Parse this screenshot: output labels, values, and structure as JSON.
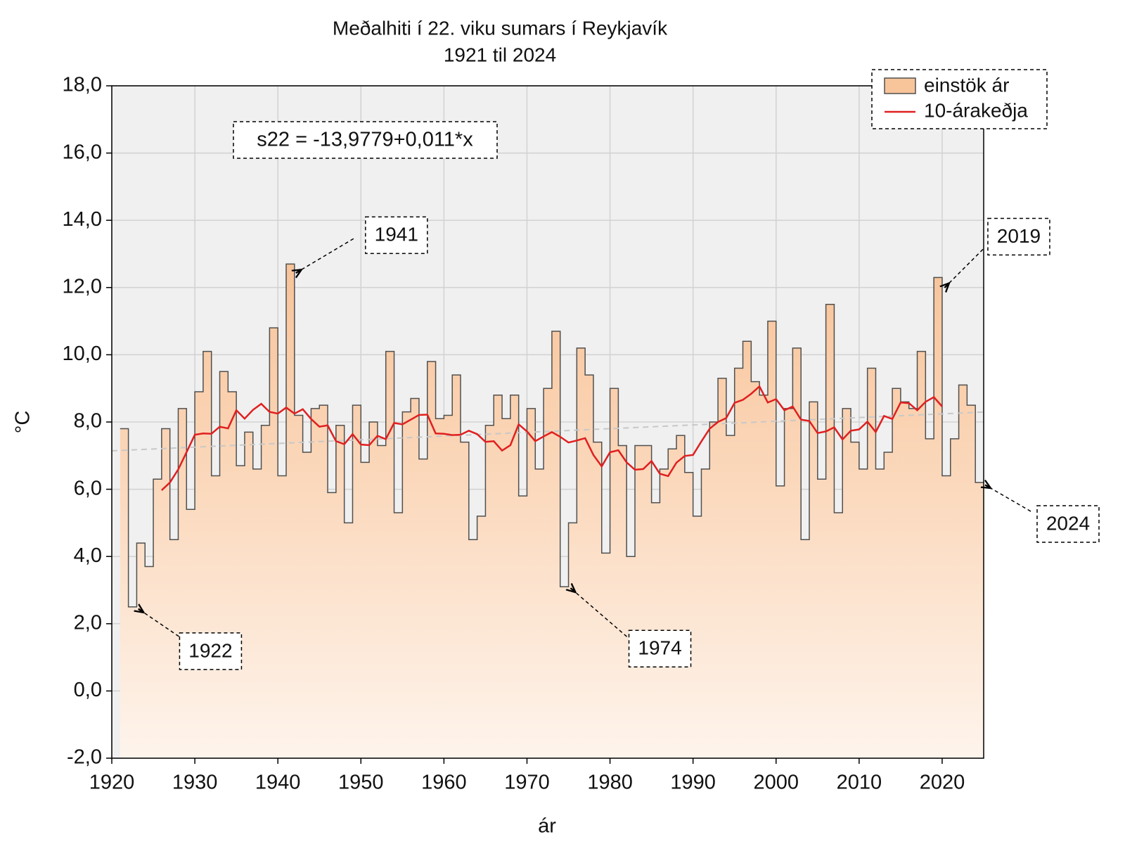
{
  "chart_data": {
    "type": "step",
    "title": "Meðalhiti í 22. viku sumars í Reykjavík",
    "subtitle": "1921 til 2024",
    "x_label": "ár",
    "y_label": "°C",
    "x": [
      1921,
      1922,
      1923,
      1924,
      1925,
      1926,
      1927,
      1928,
      1929,
      1930,
      1931,
      1932,
      1933,
      1934,
      1935,
      1936,
      1937,
      1938,
      1939,
      1940,
      1941,
      1942,
      1943,
      1944,
      1945,
      1946,
      1947,
      1948,
      1949,
      1950,
      1951,
      1952,
      1953,
      1954,
      1955,
      1956,
      1957,
      1958,
      1959,
      1960,
      1961,
      1962,
      1963,
      1964,
      1965,
      1966,
      1967,
      1968,
      1969,
      1970,
      1971,
      1972,
      1973,
      1974,
      1975,
      1976,
      1977,
      1978,
      1979,
      1980,
      1981,
      1982,
      1983,
      1984,
      1985,
      1986,
      1987,
      1988,
      1989,
      1990,
      1991,
      1992,
      1993,
      1994,
      1995,
      1996,
      1997,
      1998,
      1999,
      2000,
      2001,
      2002,
      2003,
      2004,
      2005,
      2006,
      2007,
      2008,
      2009,
      2010,
      2011,
      2012,
      2013,
      2014,
      2015,
      2016,
      2017,
      2018,
      2019,
      2020,
      2021,
      2022,
      2023,
      2024
    ],
    "series": [
      {
        "name": "einstök ár",
        "color": "#f8c49a",
        "edge_color": "#505050",
        "values": [
          7.8,
          2.5,
          4.4,
          3.7,
          6.3,
          7.8,
          4.5,
          8.4,
          5.4,
          8.9,
          10.1,
          6.4,
          9.5,
          8.9,
          6.7,
          7.7,
          6.6,
          7.9,
          10.8,
          6.4,
          12.7,
          8.2,
          7.1,
          8.4,
          8.5,
          5.9,
          7.9,
          5.0,
          8.5,
          6.8,
          8.0,
          7.3,
          10.1,
          5.3,
          8.3,
          8.7,
          6.9,
          9.8,
          8.1,
          8.2,
          9.4,
          7.4,
          4.5,
          5.2,
          7.9,
          8.8,
          8.1,
          8.8,
          5.8,
          8.4,
          6.6,
          9.0,
          10.7,
          3.1,
          5.0,
          10.2,
          9.4,
          7.4,
          4.1,
          9.0,
          7.3,
          4.0,
          7.3,
          7.3,
          5.6,
          6.6,
          7.2,
          7.6,
          6.5,
          5.2,
          6.6,
          8.0,
          9.3,
          7.6,
          9.6,
          10.4,
          9.2,
          8.8,
          11.0,
          6.1,
          8.4,
          10.2,
          4.5,
          8.6,
          6.3,
          11.5,
          5.3,
          8.4,
          7.4,
          6.6,
          9.6,
          6.6,
          7.1,
          9.0,
          8.6,
          8.4,
          10.1,
          7.5,
          12.3,
          6.4,
          7.5,
          9.1,
          8.5,
          6.2
        ]
      },
      {
        "name": "10-árakeðja",
        "color": "#e02020",
        "values": [
          null,
          null,
          null,
          null,
          null,
          5.97,
          6.2,
          6.59,
          7.1,
          7.62,
          7.66,
          7.65,
          7.86,
          7.81,
          8.35,
          8.1,
          8.36,
          8.54,
          8.3,
          8.25,
          8.43,
          8.25,
          8.38,
          8.09,
          7.86,
          7.9,
          7.43,
          7.34,
          7.64,
          7.33,
          7.31,
          7.59,
          7.49,
          7.97,
          7.93,
          8.07,
          8.21,
          8.22,
          7.66,
          7.65,
          7.61,
          7.62,
          7.74,
          7.64,
          7.41,
          7.43,
          7.15,
          7.31,
          7.93,
          7.72,
          7.43,
          7.57,
          7.7,
          7.56,
          7.39,
          7.45,
          7.52,
          7.02,
          6.68,
          7.1,
          7.16,
          6.8,
          6.58,
          6.6,
          6.84,
          6.46,
          6.39,
          6.79,
          6.99,
          7.02,
          7.42,
          7.8,
          8.0,
          8.12,
          8.57,
          8.66,
          8.84,
          9.06,
          8.58,
          8.68,
          8.35,
          8.46,
          8.07,
          8.03,
          7.67,
          7.72,
          7.84,
          7.48,
          7.74,
          7.78,
          8.01,
          7.7,
          8.18,
          8.09,
          8.58,
          8.56,
          8.35,
          8.6,
          8.74,
          8.46,
          null,
          null,
          null,
          null
        ]
      }
    ],
    "trend": {
      "equation": "s22 = -13,9779+0,011*x",
      "intercept": -13.9779,
      "slope": 0.011,
      "color": "#c8c8c8"
    },
    "annotations": [
      {
        "text": "1941"
      },
      {
        "text": "2019"
      },
      {
        "text": "1922"
      },
      {
        "text": "1974"
      },
      {
        "text": "2024"
      }
    ],
    "xlim": [
      1920,
      2025
    ],
    "ylim": [
      -2,
      18
    ],
    "xticks": [
      1920,
      1930,
      1940,
      1950,
      1960,
      1970,
      1980,
      1990,
      2000,
      2010,
      2020
    ],
    "yticks": [
      {
        "value": -2,
        "label": "-2,0"
      },
      {
        "value": 0,
        "label": "0,0"
      },
      {
        "value": 2,
        "label": "2,0"
      },
      {
        "value": 4,
        "label": "4,0"
      },
      {
        "value": 6,
        "label": "6,0"
      },
      {
        "value": 8,
        "label": "8,0"
      },
      {
        "value": 10,
        "label": "10,0"
      },
      {
        "value": 12,
        "label": "12,0"
      },
      {
        "value": 14,
        "label": "14,0"
      },
      {
        "value": 16,
        "label": "16,0"
      },
      {
        "value": 18,
        "label": "18,0"
      }
    ],
    "grid": true,
    "legend": "top-right"
  }
}
